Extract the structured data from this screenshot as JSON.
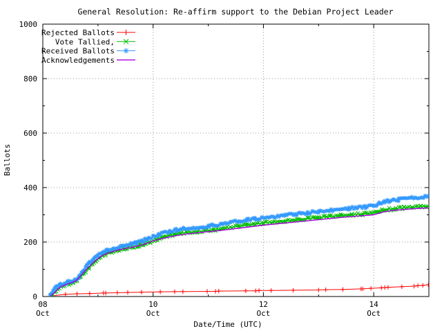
{
  "page": {
    "background": "#ffffff",
    "text_color": "#000000"
  },
  "chart_data": {
    "type": "line",
    "title": "General Resolution: Re-affirm support to the Debian Project Leader",
    "xlabel": "Date/Time (UTC)",
    "ylabel": "Ballots",
    "ylim": [
      0,
      1000
    ],
    "xlim_days": [
      0,
      7
    ],
    "grid": true,
    "grid_color": "#9a9a9a",
    "legend_position": "top-left",
    "y_ticks": [
      0,
      200,
      400,
      600,
      800,
      1000
    ],
    "y_minor_ticks": [
      100,
      300,
      500,
      700,
      900
    ],
    "x_ticks": [
      {
        "day": 0,
        "line1": "08",
        "line2": "Oct"
      },
      {
        "day": 2,
        "line1": "10",
        "line2": "Oct"
      },
      {
        "day": 4,
        "line1": "12",
        "line2": "Oct"
      },
      {
        "day": 6,
        "line1": "14",
        "line2": "Oct"
      }
    ],
    "x_minor_days": [
      1,
      3,
      5,
      7
    ],
    "series": [
      {
        "name": "Rejected Ballots",
        "color": "#ff0000",
        "marker": "plus",
        "dense": false,
        "points": [
          [
            0.15,
            2
          ],
          [
            0.41,
            8
          ],
          [
            0.62,
            10
          ],
          [
            0.85,
            11
          ],
          [
            1.1,
            13
          ],
          [
            1.14,
            13
          ],
          [
            1.35,
            14
          ],
          [
            1.54,
            15
          ],
          [
            1.79,
            16
          ],
          [
            2.13,
            17
          ],
          [
            2.39,
            18
          ],
          [
            2.54,
            18
          ],
          [
            2.98,
            19
          ],
          [
            3.13,
            19
          ],
          [
            3.19,
            20
          ],
          [
            3.68,
            21
          ],
          [
            3.86,
            21
          ],
          [
            3.92,
            22
          ],
          [
            4.14,
            22
          ],
          [
            4.54,
            23
          ],
          [
            5.0,
            24
          ],
          [
            5.13,
            25
          ],
          [
            5.44,
            26
          ],
          [
            5.77,
            28
          ],
          [
            5.8,
            28
          ],
          [
            5.95,
            30
          ],
          [
            6.14,
            32
          ],
          [
            6.2,
            33
          ],
          [
            6.26,
            34
          ],
          [
            6.51,
            36
          ],
          [
            6.73,
            38
          ],
          [
            6.8,
            40
          ],
          [
            6.89,
            41
          ],
          [
            6.99,
            43
          ]
        ]
      },
      {
        "name": "Vote Tallied,",
        "color": "#00bb00",
        "marker": "cross",
        "dense": true,
        "points": [
          [
            0.14,
            2
          ],
          [
            0.18,
            8
          ],
          [
            0.22,
            18
          ],
          [
            0.27,
            30
          ],
          [
            0.33,
            38
          ],
          [
            0.4,
            43
          ],
          [
            0.48,
            47
          ],
          [
            0.55,
            52
          ],
          [
            0.62,
            58
          ],
          [
            0.67,
            68
          ],
          [
            0.72,
            80
          ],
          [
            0.78,
            93
          ],
          [
            0.84,
            106
          ],
          [
            0.9,
            118
          ],
          [
            0.96,
            130
          ],
          [
            1.02,
            140
          ],
          [
            1.08,
            148
          ],
          [
            1.14,
            155
          ],
          [
            1.2,
            161
          ],
          [
            1.28,
            166
          ],
          [
            1.36,
            171
          ],
          [
            1.45,
            175
          ],
          [
            1.55,
            179
          ],
          [
            1.65,
            183
          ],
          [
            1.75,
            188
          ],
          [
            1.85,
            194
          ],
          [
            1.95,
            201
          ],
          [
            2.05,
            208
          ],
          [
            2.15,
            215
          ],
          [
            2.25,
            221
          ],
          [
            2.38,
            227
          ],
          [
            2.5,
            232
          ],
          [
            2.65,
            236
          ],
          [
            2.8,
            239
          ],
          [
            2.95,
            241
          ],
          [
            3.1,
            244
          ],
          [
            3.25,
            248
          ],
          [
            3.4,
            253
          ],
          [
            3.55,
            258
          ],
          [
            3.7,
            262
          ],
          [
            3.85,
            266
          ],
          [
            4.0,
            270
          ],
          [
            4.2,
            274
          ],
          [
            4.4,
            278
          ],
          [
            4.6,
            282
          ],
          [
            4.8,
            286
          ],
          [
            5.0,
            290
          ],
          [
            5.2,
            294
          ],
          [
            5.4,
            297
          ],
          [
            5.6,
            300
          ],
          [
            5.8,
            303
          ],
          [
            6.0,
            306
          ],
          [
            6.08,
            311
          ],
          [
            6.15,
            316
          ],
          [
            6.25,
            320
          ],
          [
            6.4,
            323
          ],
          [
            6.55,
            326
          ],
          [
            6.7,
            328
          ],
          [
            6.85,
            330
          ],
          [
            6.99,
            332
          ]
        ]
      },
      {
        "name": "Received Ballots",
        "color": "#3399ff",
        "marker": "star",
        "dense": true,
        "points": [
          [
            0.13,
            3
          ],
          [
            0.16,
            10
          ],
          [
            0.19,
            20
          ],
          [
            0.22,
            30
          ],
          [
            0.27,
            38
          ],
          [
            0.32,
            44
          ],
          [
            0.38,
            48
          ],
          [
            0.45,
            52
          ],
          [
            0.52,
            55
          ],
          [
            0.58,
            60
          ],
          [
            0.62,
            66
          ],
          [
            0.66,
            75
          ],
          [
            0.7,
            87
          ],
          [
            0.75,
            100
          ],
          [
            0.8,
            112
          ],
          [
            0.85,
            124
          ],
          [
            0.9,
            134
          ],
          [
            0.95,
            143
          ],
          [
            1.0,
            151
          ],
          [
            1.05,
            158
          ],
          [
            1.1,
            165
          ],
          [
            1.15,
            170
          ],
          [
            1.2,
            174
          ],
          [
            1.28,
            178
          ],
          [
            1.36,
            182
          ],
          [
            1.44,
            185
          ],
          [
            1.52,
            188
          ],
          [
            1.6,
            192
          ],
          [
            1.7,
            197
          ],
          [
            1.8,
            204
          ],
          [
            1.9,
            212
          ],
          [
            2.0,
            220
          ],
          [
            2.1,
            228
          ],
          [
            2.2,
            234
          ],
          [
            2.3,
            239
          ],
          [
            2.42,
            244
          ],
          [
            2.55,
            248
          ],
          [
            2.7,
            251
          ],
          [
            2.85,
            253
          ],
          [
            3.0,
            257
          ],
          [
            3.1,
            261
          ],
          [
            3.25,
            266
          ],
          [
            3.4,
            272
          ],
          [
            3.55,
            277
          ],
          [
            3.7,
            281
          ],
          [
            3.85,
            285
          ],
          [
            4.0,
            289
          ],
          [
            4.2,
            293
          ],
          [
            4.4,
            298
          ],
          [
            4.6,
            303
          ],
          [
            4.8,
            307
          ],
          [
            5.0,
            312
          ],
          [
            5.2,
            316
          ],
          [
            5.4,
            321
          ],
          [
            5.55,
            324
          ],
          [
            5.7,
            327
          ],
          [
            5.85,
            329
          ],
          [
            6.0,
            332
          ],
          [
            6.05,
            337
          ],
          [
            6.12,
            343
          ],
          [
            6.2,
            348
          ],
          [
            6.3,
            352
          ],
          [
            6.45,
            355
          ],
          [
            6.6,
            359
          ],
          [
            6.75,
            362
          ],
          [
            6.9,
            365
          ],
          [
            6.99,
            367
          ]
        ]
      },
      {
        "name": "Acknowledgements",
        "color": "#aa00dd",
        "marker": "none",
        "dense": false,
        "points": [
          [
            0.14,
            2
          ],
          [
            0.2,
            12
          ],
          [
            0.26,
            25
          ],
          [
            0.33,
            36
          ],
          [
            0.42,
            44
          ],
          [
            0.52,
            51
          ],
          [
            0.6,
            58
          ],
          [
            0.66,
            70
          ],
          [
            0.72,
            84
          ],
          [
            0.78,
            98
          ],
          [
            0.85,
            112
          ],
          [
            0.92,
            126
          ],
          [
            1.0,
            139
          ],
          [
            1.07,
            149
          ],
          [
            1.14,
            156
          ],
          [
            1.22,
            162
          ],
          [
            1.32,
            168
          ],
          [
            1.42,
            173
          ],
          [
            1.52,
            177
          ],
          [
            1.65,
            182
          ],
          [
            1.78,
            188
          ],
          [
            1.9,
            196
          ],
          [
            2.0,
            204
          ],
          [
            2.12,
            211
          ],
          [
            2.25,
            217
          ],
          [
            2.4,
            223
          ],
          [
            2.55,
            228
          ],
          [
            2.7,
            232
          ],
          [
            2.85,
            235
          ],
          [
            3.0,
            238
          ],
          [
            3.2,
            242
          ],
          [
            3.4,
            247
          ],
          [
            3.6,
            252
          ],
          [
            3.8,
            257
          ],
          [
            4.0,
            262
          ],
          [
            4.25,
            267
          ],
          [
            4.5,
            272
          ],
          [
            4.75,
            277
          ],
          [
            5.0,
            282
          ],
          [
            5.25,
            287
          ],
          [
            5.5,
            292
          ],
          [
            5.75,
            296
          ],
          [
            6.0,
            300
          ],
          [
            6.1,
            306
          ],
          [
            6.2,
            312
          ],
          [
            6.35,
            316
          ],
          [
            6.5,
            319
          ],
          [
            6.7,
            322
          ],
          [
            6.85,
            324
          ],
          [
            6.99,
            325
          ]
        ]
      }
    ]
  }
}
